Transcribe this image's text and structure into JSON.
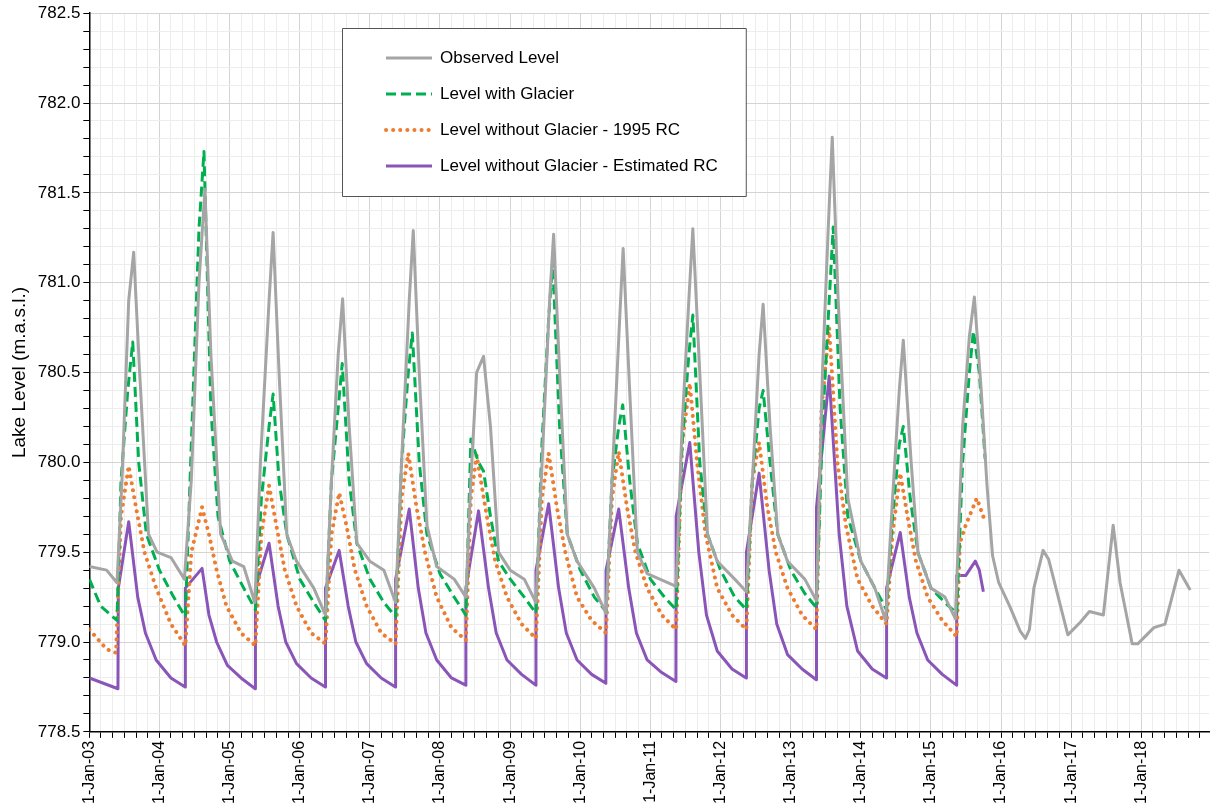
{
  "chart_data": {
    "type": "line",
    "ylabel": "Lake Level (m.a.s.l.)",
    "xlim": [
      "2003-01-01",
      "2018-12-20"
    ],
    "ylim": [
      778.5,
      782.5
    ],
    "yticks": [
      {
        "value": 778.5,
        "label": "778.5"
      },
      {
        "value": 778.6,
        "label": null
      },
      {
        "value": 778.7,
        "label": null
      },
      {
        "value": 778.8,
        "label": null
      },
      {
        "value": 778.9,
        "label": null
      },
      {
        "value": 779,
        "label": "779.0"
      },
      {
        "value": 779.1,
        "label": null
      },
      {
        "value": 779.2,
        "label": null
      },
      {
        "value": 779.3,
        "label": null
      },
      {
        "value": 779.4,
        "label": null
      },
      {
        "value": 779.5,
        "label": "779.5"
      },
      {
        "value": 779.6,
        "label": null
      },
      {
        "value": 779.7,
        "label": null
      },
      {
        "value": 779.8,
        "label": null
      },
      {
        "value": 779.9,
        "label": null
      },
      {
        "value": 780,
        "label": "780.0"
      },
      {
        "value": 780.1,
        "label": null
      },
      {
        "value": 780.2,
        "label": null
      },
      {
        "value": 780.3,
        "label": null
      },
      {
        "value": 780.4,
        "label": null
      },
      {
        "value": 780.5,
        "label": "780.5"
      },
      {
        "value": 780.6,
        "label": null
      },
      {
        "value": 780.7,
        "label": null
      },
      {
        "value": 780.8,
        "label": null
      },
      {
        "value": 780.9,
        "label": null
      },
      {
        "value": 781,
        "label": "781.0"
      },
      {
        "value": 781.1,
        "label": null
      },
      {
        "value": 781.2,
        "label": null
      },
      {
        "value": 781.3,
        "label": null
      },
      {
        "value": 781.4,
        "label": null
      },
      {
        "value": 781.5,
        "label": "781.5"
      },
      {
        "value": 781.6,
        "label": null
      },
      {
        "value": 781.7,
        "label": null
      },
      {
        "value": 781.8,
        "label": null
      },
      {
        "value": 781.9,
        "label": null
      },
      {
        "value": 782,
        "label": "782.0"
      },
      {
        "value": 782.1,
        "label": null
      },
      {
        "value": 782.2,
        "label": null
      },
      {
        "value": 782.3,
        "label": null
      },
      {
        "value": 782.4,
        "label": null
      },
      {
        "value": 782.5,
        "label": "782.5"
      }
    ],
    "xticks": [
      {
        "value": "2003-01-01",
        "label": "1-Jan-03"
      },
      {
        "value": "2003-03-01",
        "label": null
      },
      {
        "value": "2003-05-01",
        "label": null
      },
      {
        "value": "2003-07-01",
        "label": null
      },
      {
        "value": "2003-09-01",
        "label": null
      },
      {
        "value": "2003-11-01",
        "label": null
      },
      {
        "value": "2004-01-01",
        "label": "1-Jan-04"
      },
      {
        "value": "2004-03-01",
        "label": null
      },
      {
        "value": "2004-05-01",
        "label": null
      },
      {
        "value": "2004-07-01",
        "label": null
      },
      {
        "value": "2004-09-01",
        "label": null
      },
      {
        "value": "2004-11-01",
        "label": null
      },
      {
        "value": "2005-01-01",
        "label": "1-Jan-05"
      },
      {
        "value": "2005-03-01",
        "label": null
      },
      {
        "value": "2005-05-01",
        "label": null
      },
      {
        "value": "2005-07-01",
        "label": null
      },
      {
        "value": "2005-09-01",
        "label": null
      },
      {
        "value": "2005-11-01",
        "label": null
      },
      {
        "value": "2006-01-01",
        "label": "1-Jan-06"
      },
      {
        "value": "2006-03-01",
        "label": null
      },
      {
        "value": "2006-05-01",
        "label": null
      },
      {
        "value": "2006-07-01",
        "label": null
      },
      {
        "value": "2006-09-01",
        "label": null
      },
      {
        "value": "2006-11-01",
        "label": null
      },
      {
        "value": "2007-01-01",
        "label": "1-Jan-07"
      },
      {
        "value": "2007-03-01",
        "label": null
      },
      {
        "value": "2007-05-01",
        "label": null
      },
      {
        "value": "2007-07-01",
        "label": null
      },
      {
        "value": "2007-09-01",
        "label": null
      },
      {
        "value": "2007-11-01",
        "label": null
      },
      {
        "value": "2008-01-01",
        "label": "1-Jan-08"
      },
      {
        "value": "2008-03-01",
        "label": null
      },
      {
        "value": "2008-05-01",
        "label": null
      },
      {
        "value": "2008-07-01",
        "label": null
      },
      {
        "value": "2008-09-01",
        "label": null
      },
      {
        "value": "2008-11-01",
        "label": null
      },
      {
        "value": "2009-01-01",
        "label": "1-Jan-09"
      },
      {
        "value": "2009-03-01",
        "label": null
      },
      {
        "value": "2009-05-01",
        "label": null
      },
      {
        "value": "2009-07-01",
        "label": null
      },
      {
        "value": "2009-09-01",
        "label": null
      },
      {
        "value": "2009-11-01",
        "label": null
      },
      {
        "value": "2010-01-01",
        "label": "1-Jan-10"
      },
      {
        "value": "2010-03-01",
        "label": null
      },
      {
        "value": "2010-05-01",
        "label": null
      },
      {
        "value": "2010-07-01",
        "label": null
      },
      {
        "value": "2010-09-01",
        "label": null
      },
      {
        "value": "2010-11-01",
        "label": null
      },
      {
        "value": "2011-01-01",
        "label": "1-Jan-11"
      },
      {
        "value": "2011-03-01",
        "label": null
      },
      {
        "value": "2011-05-01",
        "label": null
      },
      {
        "value": "2011-07-01",
        "label": null
      },
      {
        "value": "2011-09-01",
        "label": null
      },
      {
        "value": "2011-11-01",
        "label": null
      },
      {
        "value": "2012-01-01",
        "label": "1-Jan-12"
      },
      {
        "value": "2012-03-01",
        "label": null
      },
      {
        "value": "2012-05-01",
        "label": null
      },
      {
        "value": "2012-07-01",
        "label": null
      },
      {
        "value": "2012-09-01",
        "label": null
      },
      {
        "value": "2012-11-01",
        "label": null
      },
      {
        "value": "2013-01-01",
        "label": "1-Jan-13"
      },
      {
        "value": "2013-03-01",
        "label": null
      },
      {
        "value": "2013-05-01",
        "label": null
      },
      {
        "value": "2013-07-01",
        "label": null
      },
      {
        "value": "2013-09-01",
        "label": null
      },
      {
        "value": "2013-11-01",
        "label": null
      },
      {
        "value": "2014-01-01",
        "label": "1-Jan-14"
      },
      {
        "value": "2014-03-01",
        "label": null
      },
      {
        "value": "2014-05-01",
        "label": null
      },
      {
        "value": "2014-07-01",
        "label": null
      },
      {
        "value": "2014-09-01",
        "label": null
      },
      {
        "value": "2014-11-01",
        "label": null
      },
      {
        "value": "2015-01-01",
        "label": "1-Jan-15"
      },
      {
        "value": "2015-03-01",
        "label": null
      },
      {
        "value": "2015-05-01",
        "label": null
      },
      {
        "value": "2015-07-01",
        "label": null
      },
      {
        "value": "2015-09-01",
        "label": null
      },
      {
        "value": "2015-11-01",
        "label": null
      },
      {
        "value": "2016-01-01",
        "label": "1-Jan-16"
      },
      {
        "value": "2016-03-01",
        "label": null
      },
      {
        "value": "2016-05-01",
        "label": null
      },
      {
        "value": "2016-07-01",
        "label": null
      },
      {
        "value": "2016-09-01",
        "label": null
      },
      {
        "value": "2016-11-01",
        "label": null
      },
      {
        "value": "2017-01-01",
        "label": "1-Jan-17"
      },
      {
        "value": "2017-03-01",
        "label": null
      },
      {
        "value": "2017-05-01",
        "label": null
      },
      {
        "value": "2017-07-01",
        "label": null
      },
      {
        "value": "2017-09-01",
        "label": null
      },
      {
        "value": "2017-11-01",
        "label": null
      },
      {
        "value": "2018-01-01",
        "label": "1-Jan-18"
      },
      {
        "value": "2018-03-01",
        "label": null
      },
      {
        "value": "2018-05-01",
        "label": null
      },
      {
        "value": "2018-07-01",
        "label": null
      },
      {
        "value": "2018-09-01",
        "label": null
      },
      {
        "value": "2018-11-01",
        "label": null
      }
    ],
    "grid": true,
    "legend": "top",
    "marker": "none",
    "series": [
      {
        "name": "Observed Level",
        "color": "#a5a5a5",
        "line_style": "solid",
        "x": [
          "2003-01-01",
          "2003-04-01",
          "2003-05-25",
          "2003-06-20",
          "2003-07-25",
          "2003-08-20",
          "2003-09-20",
          "2003-11-05",
          "2003-12-20",
          "2004-03-01",
          "2004-05-10",
          "2004-06-15",
          "2004-07-25",
          "2004-08-25",
          "2004-09-25",
          "2004-11-15",
          "2005-01-15",
          "2005-03-15",
          "2005-05-12",
          "2005-06-10",
          "2005-07-25",
          "2005-08-15",
          "2005-09-15",
          "2005-10-25",
          "2005-12-15",
          "2006-03-15",
          "2006-05-15",
          "2006-06-15",
          "2006-07-20",
          "2006-08-12",
          "2006-09-15",
          "2006-10-25",
          "2007-01-01",
          "2007-03-15",
          "2007-05-15",
          "2007-06-15",
          "2007-07-25",
          "2007-08-15",
          "2007-09-15",
          "2007-10-25",
          "2007-12-15",
          "2008-03-15",
          "2008-05-15",
          "2008-06-10",
          "2008-07-10",
          "2008-08-15",
          "2008-09-20",
          "2008-11-01",
          "2009-01-01",
          "2009-03-15",
          "2009-05-15",
          "2009-06-20",
          "2009-07-25",
          "2009-08-15",
          "2009-09-15",
          "2009-10-25",
          "2009-12-15",
          "2010-03-15",
          "2010-05-15",
          "2010-06-15",
          "2010-07-25",
          "2010-08-12",
          "2010-09-15",
          "2010-10-25",
          "2010-12-15",
          "2011-04-01",
          "2011-05-15",
          "2011-06-15",
          "2011-07-20",
          "2011-08-10",
          "2011-09-15",
          "2011-10-25",
          "2011-12-15",
          "2012-03-15",
          "2012-05-15",
          "2012-06-15",
          "2012-07-20",
          "2012-08-10",
          "2012-09-15",
          "2012-10-25",
          "2012-12-15",
          "2013-03-15",
          "2013-05-15",
          "2013-06-15",
          "2013-07-15",
          "2013-08-05",
          "2013-09-05",
          "2013-10-25",
          "2014-01-01",
          "2014-03-15",
          "2014-05-10",
          "2014-06-15",
          "2014-07-20",
          "2014-08-10",
          "2014-09-20",
          "2014-10-25",
          "2015-01-01",
          "2015-03-15",
          "2015-05-08",
          "2015-06-15",
          "2015-07-20",
          "2015-08-15",
          "2015-09-20",
          "2015-10-20",
          "2015-11-18",
          "2015-12-20",
          "2016-02-15",
          "2016-04-10",
          "2016-05-07",
          "2016-05-28",
          "2016-06-20",
          "2016-08-07",
          "2016-09-05",
          "2016-12-14",
          "2017-02-17",
          "2017-04-05",
          "2017-06-17",
          "2017-08-07",
          "2017-09-12",
          "2017-11-14",
          "2017-12-13",
          "2018-03-07",
          "2018-05-04",
          "2018-07-16",
          "2018-09-12"
        ],
        "values": [
          779.42,
          779.4,
          779.33,
          779.9,
          780.9,
          781.17,
          780.5,
          779.6,
          779.5,
          779.47,
          779.35,
          779.9,
          781.0,
          781.52,
          780.6,
          779.6,
          779.45,
          779.42,
          779.22,
          780.0,
          780.9,
          781.28,
          780.5,
          779.6,
          779.45,
          779.3,
          779.15,
          779.9,
          780.6,
          780.91,
          780.2,
          779.55,
          779.45,
          779.4,
          779.22,
          780.0,
          780.9,
          781.29,
          780.5,
          779.65,
          779.42,
          779.35,
          779.25,
          779.9,
          780.5,
          780.59,
          780.2,
          779.5,
          779.4,
          779.35,
          779.22,
          780.1,
          780.9,
          781.27,
          780.5,
          779.6,
          779.45,
          779.3,
          779.16,
          779.9,
          780.8,
          781.19,
          780.4,
          779.5,
          779.38,
          779.33,
          779.31,
          780.2,
          780.9,
          781.3,
          780.5,
          779.6,
          779.45,
          779.35,
          779.28,
          779.9,
          780.6,
          780.88,
          780.2,
          779.6,
          779.45,
          779.35,
          779.23,
          780.5,
          781.3,
          781.81,
          780.9,
          779.8,
          779.45,
          779.3,
          779.12,
          779.8,
          780.4,
          780.68,
          780.0,
          779.5,
          779.3,
          779.25,
          779.13,
          780.2,
          780.7,
          780.92,
          780.4,
          779.87,
          779.48,
          779.33,
          779.2,
          779.06,
          779.02,
          779.07,
          779.3,
          779.51,
          779.46,
          779.04,
          779.11,
          779.17,
          779.15,
          779.65,
          779.33,
          778.99,
          778.99,
          779.08,
          779.1,
          779.4,
          779.29
        ]
      },
      {
        "name": "Level with Glacier",
        "color": "#00b050",
        "line_style": "dashed",
        "x": [
          "2003-01-01",
          "2003-03-01",
          "2003-05-25",
          "2003-06-15",
          "2003-07-20",
          "2003-08-15",
          "2003-09-15",
          "2003-10-25",
          "2004-01-01",
          "2004-03-15",
          "2004-05-15",
          "2004-06-15",
          "2004-07-25",
          "2004-08-20",
          "2004-09-25",
          "2004-11-01",
          "2005-01-01",
          "2005-03-15",
          "2005-05-15",
          "2005-06-15",
          "2005-07-25",
          "2005-08-15",
          "2005-09-15",
          "2005-10-25",
          "2006-01-01",
          "2006-03-15",
          "2006-05-15",
          "2006-06-15",
          "2006-07-20",
          "2006-08-10",
          "2006-09-15",
          "2006-10-25",
          "2007-01-01",
          "2007-03-15",
          "2007-05-15",
          "2007-06-15",
          "2007-07-20",
          "2007-08-10",
          "2007-09-15",
          "2007-10-25",
          "2008-01-01",
          "2008-03-15",
          "2008-05-15",
          "2008-06-10",
          "2008-07-20",
          "2008-08-15",
          "2008-09-20",
          "2008-11-01",
          "2009-01-01",
          "2009-03-15",
          "2009-05-15",
          "2009-06-15",
          "2009-07-20",
          "2009-08-10",
          "2009-09-15",
          "2009-10-25",
          "2010-01-01",
          "2010-03-15",
          "2010-05-15",
          "2010-06-15",
          "2010-07-20",
          "2010-08-10",
          "2010-09-15",
          "2010-10-25",
          "2011-01-01",
          "2011-03-15",
          "2011-05-15",
          "2011-06-15",
          "2011-07-20",
          "2011-08-10",
          "2011-09-15",
          "2011-10-25",
          "2012-01-01",
          "2012-03-15",
          "2012-05-15",
          "2012-06-15",
          "2012-07-20",
          "2012-08-10",
          "2012-09-15",
          "2012-10-25",
          "2013-01-01",
          "2013-03-15",
          "2013-05-15",
          "2013-06-15",
          "2013-07-20",
          "2013-08-10",
          "2013-09-15",
          "2013-10-25",
          "2014-01-01",
          "2014-03-15",
          "2014-05-15",
          "2014-06-15",
          "2014-07-20",
          "2014-08-10",
          "2014-09-15",
          "2014-10-25",
          "2015-01-01",
          "2015-03-15",
          "2015-05-15",
          "2015-06-15",
          "2015-07-20",
          "2015-08-10",
          "2015-09-10",
          "2015-10-10"
        ],
        "values": [
          779.35,
          779.2,
          779.12,
          779.9,
          780.4,
          780.67,
          780.0,
          779.6,
          779.4,
          779.25,
          779.14,
          780.1,
          781.3,
          781.73,
          780.3,
          779.7,
          779.45,
          779.3,
          779.18,
          779.8,
          780.2,
          780.38,
          779.9,
          779.6,
          779.35,
          779.22,
          779.12,
          779.9,
          780.3,
          780.55,
          779.9,
          779.55,
          779.35,
          779.22,
          779.14,
          780.0,
          780.5,
          780.72,
          780.0,
          779.6,
          779.38,
          779.25,
          779.15,
          780.13,
          780.0,
          779.95,
          779.7,
          779.45,
          779.35,
          779.25,
          779.16,
          780.1,
          780.8,
          781.12,
          780.2,
          779.6,
          779.4,
          779.25,
          779.17,
          779.9,
          780.2,
          780.32,
          779.9,
          779.55,
          779.35,
          779.25,
          779.18,
          780.1,
          780.6,
          780.82,
          780.0,
          779.6,
          779.4,
          779.25,
          779.18,
          779.9,
          780.3,
          780.4,
          780.0,
          779.6,
          779.4,
          779.27,
          779.19,
          780.2,
          780.9,
          781.31,
          780.3,
          779.7,
          779.45,
          779.3,
          779.18,
          779.7,
          780.1,
          780.2,
          779.8,
          779.5,
          779.3,
          779.22,
          779.16,
          780.0,
          780.5,
          780.73,
          780.5,
          780.02
        ]
      },
      {
        "name": "Level without Glacier - 1995 RC",
        "color": "#ed7d31",
        "line_style": "dotted",
        "x": [
          "2003-01-01",
          "2003-04-01",
          "2003-05-20",
          "2003-06-15",
          "2003-07-25",
          "2003-09-01",
          "2003-10-15",
          "2003-12-15",
          "2004-03-01",
          "2004-05-15",
          "2004-06-15",
          "2004-08-10",
          "2004-09-15",
          "2004-10-25",
          "2004-12-15",
          "2005-03-01",
          "2005-05-15",
          "2005-06-15",
          "2005-07-25",
          "2005-09-01",
          "2005-10-15",
          "2005-12-15",
          "2006-03-01",
          "2006-05-15",
          "2006-06-15",
          "2006-07-25",
          "2006-09-01",
          "2006-10-15",
          "2006-12-15",
          "2007-03-01",
          "2007-05-15",
          "2007-06-15",
          "2007-07-20",
          "2007-09-01",
          "2007-10-15",
          "2007-12-15",
          "2008-03-01",
          "2008-05-15",
          "2008-06-10",
          "2008-07-10",
          "2008-09-01",
          "2008-10-15",
          "2008-12-15",
          "2009-03-01",
          "2009-05-15",
          "2009-06-15",
          "2009-07-20",
          "2009-09-01",
          "2009-10-15",
          "2009-12-15",
          "2010-03-01",
          "2010-05-15",
          "2010-06-15",
          "2010-07-20",
          "2010-09-01",
          "2010-10-15",
          "2010-12-15",
          "2011-03-01",
          "2011-05-15",
          "2011-06-15",
          "2011-07-25",
          "2011-09-01",
          "2011-10-15",
          "2011-12-15",
          "2012-03-01",
          "2012-05-15",
          "2012-06-15",
          "2012-07-20",
          "2012-09-01",
          "2012-10-15",
          "2012-12-15",
          "2013-03-01",
          "2013-05-15",
          "2013-06-10",
          "2013-07-20",
          "2013-09-01",
          "2013-10-15",
          "2013-12-15",
          "2014-03-01",
          "2014-05-15",
          "2014-06-15",
          "2014-07-25",
          "2014-09-01",
          "2014-10-15",
          "2014-12-15",
          "2015-03-01",
          "2015-05-15",
          "2015-06-01",
          "2015-07-01",
          "2015-08-28",
          "2015-10-10"
        ],
        "values": [
          779.07,
          778.96,
          778.94,
          779.7,
          779.98,
          779.75,
          779.5,
          779.3,
          779.1,
          778.98,
          779.5,
          779.75,
          779.6,
          779.4,
          779.2,
          779.05,
          778.98,
          779.6,
          779.87,
          779.65,
          779.4,
          779.2,
          779.05,
          778.99,
          779.6,
          779.83,
          779.65,
          779.4,
          779.2,
          779.05,
          778.99,
          779.8,
          780.05,
          779.75,
          779.5,
          779.25,
          779.08,
          779.01,
          779.8,
          780.04,
          779.7,
          779.45,
          779.25,
          779.1,
          779.02,
          779.8,
          780.05,
          779.75,
          779.5,
          779.25,
          779.12,
          779.05,
          779.8,
          780.06,
          779.75,
          779.5,
          779.3,
          779.15,
          779.07,
          780.1,
          780.44,
          780.0,
          779.6,
          779.3,
          779.15,
          779.07,
          779.9,
          780.11,
          779.75,
          779.5,
          779.3,
          779.15,
          779.07,
          780.3,
          780.75,
          780.0,
          779.65,
          779.35,
          779.2,
          779.1,
          779.6,
          779.94,
          779.7,
          779.45,
          779.25,
          779.12,
          779.03,
          779.55,
          779.65,
          779.8,
          779.67
        ]
      },
      {
        "name": "Level without Glacier - Estimated RC",
        "color": "#8a55b8",
        "line_style": "solid",
        "x": [
          "2003-01-01",
          "2003-05-30",
          "2003-06-01",
          "2003-07-25",
          "2003-09-10",
          "2003-10-20",
          "2003-12-15",
          "2004-03-01",
          "2004-05-14",
          "2004-05-15",
          "2004-08-10",
          "2004-09-15",
          "2004-10-25",
          "2004-12-20",
          "2005-03-01",
          "2005-05-14",
          "2005-05-15",
          "2005-07-25",
          "2005-09-10",
          "2005-10-20",
          "2005-12-15",
          "2006-03-01",
          "2006-05-14",
          "2006-05-15",
          "2006-07-25",
          "2006-09-10",
          "2006-10-20",
          "2006-12-15",
          "2007-03-01",
          "2007-05-14",
          "2007-05-15",
          "2007-07-25",
          "2007-09-10",
          "2007-10-20",
          "2007-12-15",
          "2008-03-01",
          "2008-05-14",
          "2008-05-15",
          "2008-07-20",
          "2008-09-10",
          "2008-10-20",
          "2008-12-15",
          "2009-03-01",
          "2009-05-14",
          "2009-05-15",
          "2009-07-20",
          "2009-09-10",
          "2009-10-20",
          "2009-12-15",
          "2010-03-01",
          "2010-05-14",
          "2010-05-15",
          "2010-07-20",
          "2010-09-10",
          "2010-10-20",
          "2010-12-15",
          "2011-03-01",
          "2011-05-14",
          "2011-05-15",
          "2011-07-25",
          "2011-09-10",
          "2011-10-20",
          "2011-12-15",
          "2012-03-01",
          "2012-05-14",
          "2012-05-15",
          "2012-07-20",
          "2012-09-10",
          "2012-10-20",
          "2012-12-15",
          "2013-03-01",
          "2013-05-14",
          "2013-05-15",
          "2013-07-20",
          "2013-09-10",
          "2013-10-20",
          "2013-12-15",
          "2014-03-01",
          "2014-05-14",
          "2014-05-15",
          "2014-07-25",
          "2014-09-10",
          "2014-10-20",
          "2014-12-15",
          "2015-03-01",
          "2015-05-14",
          "2015-05-15",
          "2015-07-01",
          "2015-08-20",
          "2015-09-10",
          "2015-10-01"
        ],
        "values": [
          778.8,
          778.74,
          779.3,
          779.67,
          779.25,
          779.05,
          778.9,
          778.8,
          778.75,
          779.3,
          779.41,
          779.15,
          779.0,
          778.87,
          778.8,
          778.74,
          779.3,
          779.55,
          779.2,
          779.0,
          778.88,
          778.8,
          778.75,
          779.3,
          779.51,
          779.2,
          779.0,
          778.88,
          778.8,
          778.75,
          779.35,
          779.74,
          779.3,
          779.05,
          778.9,
          778.8,
          778.76,
          779.3,
          779.73,
          779.3,
          779.05,
          778.9,
          778.82,
          778.76,
          779.4,
          779.77,
          779.3,
          779.05,
          778.9,
          778.82,
          778.77,
          779.4,
          779.74,
          779.3,
          779.05,
          778.9,
          778.83,
          778.78,
          779.7,
          780.11,
          779.5,
          779.15,
          778.95,
          778.85,
          778.8,
          779.5,
          779.94,
          779.4,
          779.1,
          778.93,
          778.85,
          778.79,
          779.75,
          780.48,
          779.6,
          779.2,
          778.95,
          778.85,
          778.8,
          779.3,
          779.61,
          779.25,
          779.05,
          778.9,
          778.82,
          778.76,
          779.37,
          779.37,
          779.45,
          779.4,
          779.28
        ]
      }
    ]
  }
}
